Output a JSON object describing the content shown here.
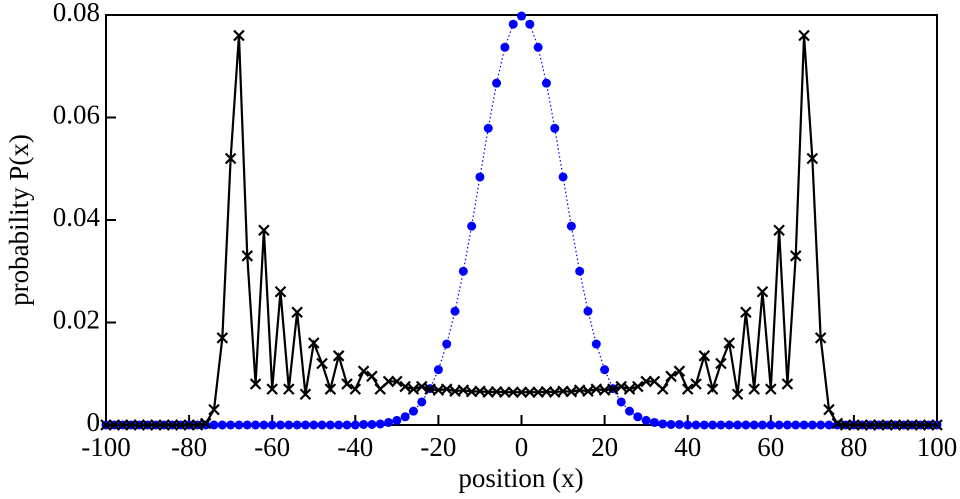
{
  "chart_data": {
    "type": "line",
    "xlabel": "position (x)",
    "ylabel": "probability P(x)",
    "x": [
      -100,
      -98,
      -96,
      -94,
      -92,
      -90,
      -88,
      -86,
      -84,
      -82,
      -80,
      -78,
      -76,
      -74,
      -72,
      -70,
      -68,
      -66,
      -64,
      -62,
      -60,
      -58,
      -56,
      -54,
      -52,
      -50,
      -48,
      -46,
      -44,
      -42,
      -40,
      -38,
      -36,
      -34,
      -32,
      -30,
      -28,
      -26,
      -24,
      -22,
      -20,
      -18,
      -16,
      -14,
      -12,
      -10,
      -8,
      -6,
      -4,
      -2,
      0,
      2,
      4,
      6,
      8,
      10,
      12,
      14,
      16,
      18,
      20,
      22,
      24,
      26,
      28,
      30,
      32,
      34,
      36,
      38,
      40,
      42,
      44,
      46,
      48,
      50,
      52,
      54,
      56,
      58,
      60,
      62,
      64,
      66,
      68,
      70,
      72,
      74,
      76,
      78,
      80,
      82,
      84,
      86,
      88,
      90,
      92,
      94,
      96,
      98,
      100
    ],
    "series": [
      {
        "color": "#0000ff",
        "marker": "circle",
        "line_style": "dotted",
        "values": [
          0,
          0,
          0,
          0,
          0,
          0,
          0,
          0,
          0,
          0,
          0,
          0,
          0,
          0,
          0,
          0,
          0,
          0,
          0,
          0,
          0,
          0,
          0,
          0,
          0,
          0,
          0,
          0,
          0,
          0,
          0,
          0.0001,
          0.0001,
          0.0002,
          0.0005,
          0.0009,
          0.0016,
          0.0027,
          0.0045,
          0.0071,
          0.0108,
          0.0158,
          0.0222,
          0.03,
          0.0388,
          0.0484,
          0.0579,
          0.0667,
          0.0737,
          0.0782,
          0.0798,
          0.0782,
          0.0737,
          0.0667,
          0.0579,
          0.0484,
          0.0388,
          0.03,
          0.0222,
          0.0158,
          0.0108,
          0.0071,
          0.0045,
          0.0027,
          0.0016,
          0.0009,
          0.0005,
          0.0002,
          0.0001,
          0.0001,
          0,
          0,
          0,
          0,
          0,
          0,
          0,
          0,
          0,
          0,
          0,
          0,
          0,
          0,
          0,
          0,
          0,
          0,
          0,
          0,
          0,
          0,
          0,
          0,
          0,
          0,
          0,
          0,
          0,
          0,
          0
        ]
      },
      {
        "color": "#000000",
        "marker": "x",
        "line_style": "solid",
        "values": [
          0,
          0,
          0,
          0,
          0,
          0,
          0,
          0,
          0,
          0,
          0,
          0,
          0.0003,
          0.003,
          0.017,
          0.052,
          0.076,
          0.033,
          0.008,
          0.038,
          0.007,
          0.026,
          0.007,
          0.022,
          0.006,
          0.016,
          0.012,
          0.007,
          0.0135,
          0.008,
          0.007,
          0.0105,
          0.0095,
          0.007,
          0.0085,
          0.0085,
          0.0075,
          0.007,
          0.0075,
          0.007,
          0.0068,
          0.007,
          0.0066,
          0.0068,
          0.0065,
          0.0066,
          0.0064,
          0.0065,
          0.0064,
          0.0064,
          0.0064,
          0.0064,
          0.0064,
          0.0065,
          0.0064,
          0.0066,
          0.0065,
          0.0068,
          0.0066,
          0.007,
          0.0068,
          0.007,
          0.0075,
          0.007,
          0.0075,
          0.0085,
          0.0085,
          0.007,
          0.0095,
          0.0105,
          0.007,
          0.008,
          0.0135,
          0.007,
          0.012,
          0.016,
          0.006,
          0.022,
          0.007,
          0.026,
          0.007,
          0.038,
          0.008,
          0.033,
          0.076,
          0.052,
          0.017,
          0.003,
          0.0003,
          0,
          0,
          0,
          0,
          0,
          0,
          0,
          0,
          0,
          0,
          0,
          0
        ]
      }
    ],
    "xlim": [
      -100,
      100
    ],
    "xticks": [
      -100,
      -80,
      -60,
      -40,
      -20,
      0,
      20,
      40,
      60,
      80,
      100
    ],
    "ylim": [
      0,
      0.08
    ],
    "yticks": [
      0,
      0.02,
      0.04,
      0.06,
      0.08
    ]
  }
}
